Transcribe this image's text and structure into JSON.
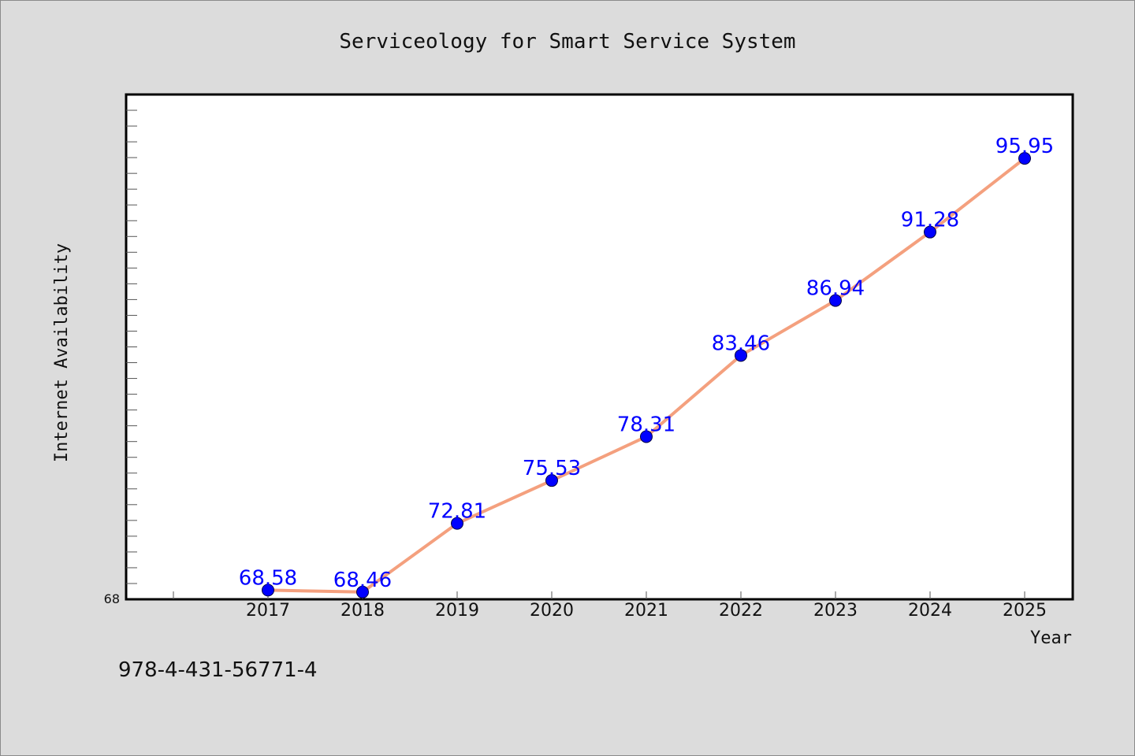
{
  "chart_data": {
    "type": "line",
    "title": "Serviceology for Smart Service System",
    "xlabel": "Year",
    "ylabel": "Internet Availability",
    "categories": [
      "2017",
      "2018",
      "2019",
      "2020",
      "2021",
      "2022",
      "2023",
      "2024",
      "2025"
    ],
    "series": [
      {
        "values": [
          68.58,
          68.46,
          72.81,
          75.53,
          78.31,
          83.46,
          86.94,
          91.28,
          95.95
        ],
        "labels": [
          "68.58",
          "68.46",
          "72.81",
          "75.53",
          "78.31",
          "83.46",
          "86.94",
          "91.28",
          "95.95"
        ]
      }
    ],
    "ylim": [
      68,
      100
    ],
    "y_tick_labels": [
      "68"
    ],
    "grid": false,
    "legend": "none",
    "colors": {
      "line": "#f4a07e",
      "marker": "#0000ff",
      "data_label": "#0000ff",
      "background": "#dcdcdc",
      "plot_background": "#ffffff"
    }
  },
  "footer": {
    "isbn": "978-4-431-56771-4"
  }
}
